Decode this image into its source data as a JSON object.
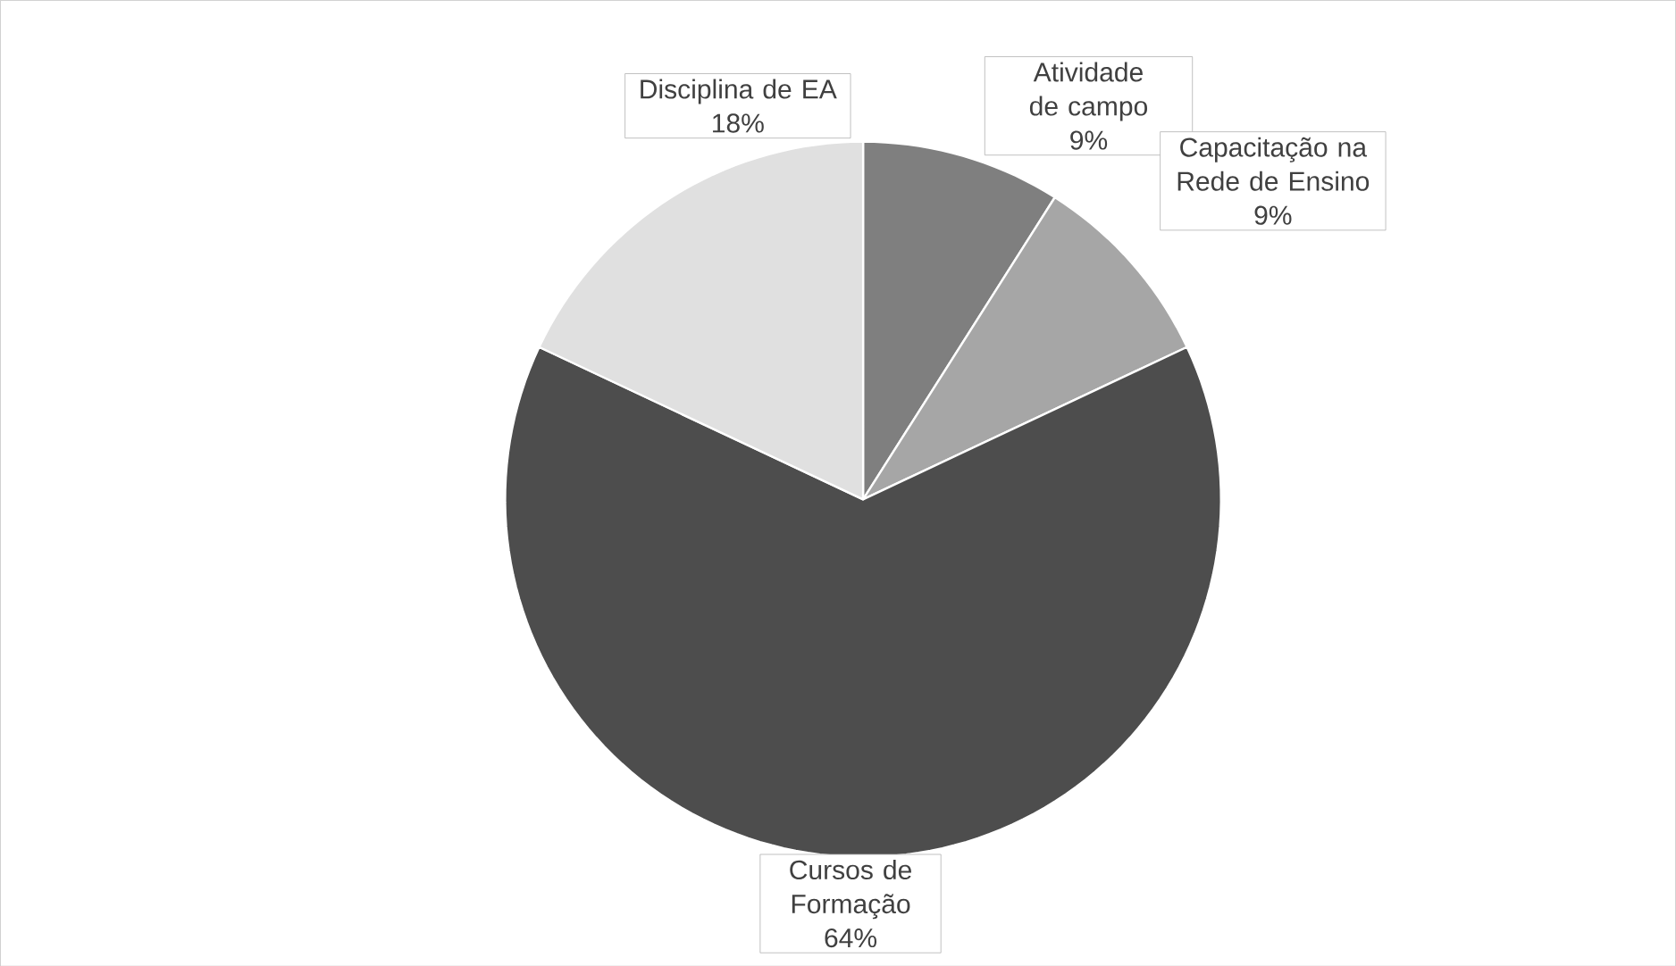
{
  "chart_data": {
    "type": "pie",
    "categories": [
      "Atividade de campo",
      "Capacitação na Rede de Ensino",
      "Cursos de Formação",
      "Disciplina de EA"
    ],
    "values": [
      9,
      9,
      64,
      18
    ],
    "colors": [
      "#7f7f7f",
      "#a6a6a6",
      "#4d4d4d",
      "#e0e0e0"
    ],
    "value_labels": [
      "9%",
      "9%",
      "64%",
      "18%"
    ]
  }
}
